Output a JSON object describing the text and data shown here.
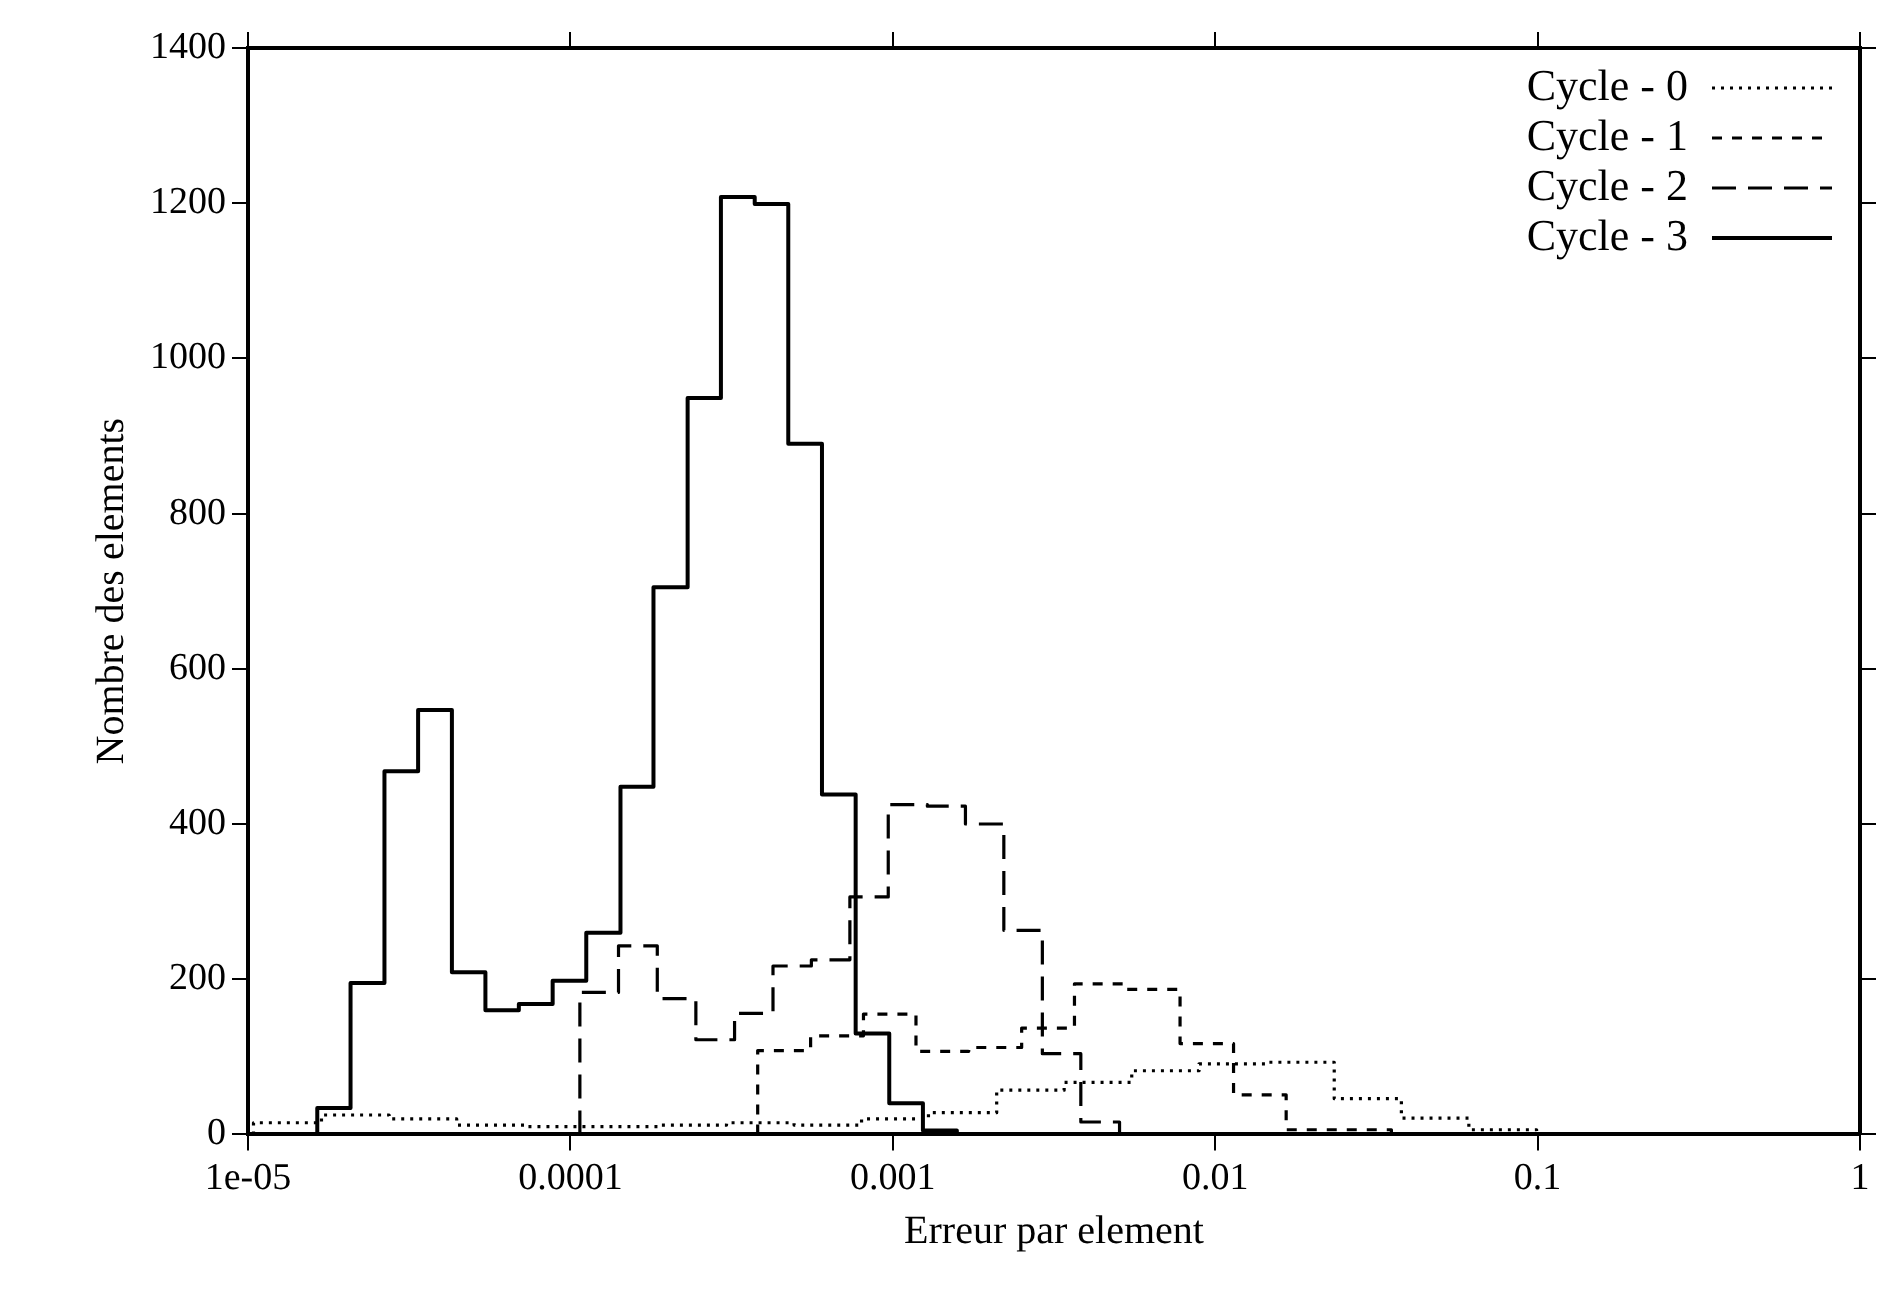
{
  "chart_data": {
    "type": "line",
    "xlabel": "Erreur par element",
    "ylabel": "Nombre des elements",
    "log": "x",
    "xlim": [
      1e-05,
      1
    ],
    "xticks": [
      {
        "value": 1e-05,
        "label": "1e-05"
      },
      0.0001,
      0.001,
      0.01,
      0.1,
      1
    ],
    "ylim": [
      0,
      1400
    ],
    "yticks": [
      0,
      200,
      400,
      600,
      800,
      1000,
      1200,
      1400
    ],
    "grid": false,
    "legend": "top right",
    "series": [
      {
        "name": "Cycle - 0",
        "type": "step",
        "color": "#000000",
        "line_style": "dotted",
        "x": [
          1.04e-05,
          1.04e-05,
          1.69e-05,
          2.74e-05,
          4.44e-05,
          7.18e-05,
          0.000116,
          0.000188,
          0.000305,
          0.000494,
          0.0008,
          0.00129,
          0.0021,
          0.0034,
          0.00551,
          0.00891,
          0.0144,
          0.0234,
          0.0378,
          0.0612,
          0.0993,
          0.161
        ],
        "values": [
          0,
          11,
          15,
          25,
          20,
          12,
          10,
          10,
          12,
          15,
          12,
          20,
          28,
          57,
          67,
          82,
          91,
          93,
          46,
          21,
          6,
          0
        ]
      },
      {
        "name": "Cycle - 1",
        "type": "step",
        "color": "#000000",
        "line_style": "dashed",
        "x": [
          0.000381,
          0.000381,
          0.000556,
          0.000811,
          0.00118,
          0.00172,
          0.00251,
          0.00366,
          0.00533,
          0.00778,
          0.0114,
          0.0166,
          0.0241,
          0.0352,
          0.0513
        ],
        "values": [
          0,
          64,
          108,
          127,
          155,
          107,
          112,
          137,
          194,
          187,
          117,
          51,
          6,
          6,
          0
        ]
      },
      {
        "name": "Cycle - 2",
        "type": "step",
        "color": "#000000",
        "line_style": "dashed",
        "x": [
          0.000107,
          0.000107,
          0.000141,
          0.000186,
          0.000245,
          0.000323,
          0.000425,
          0.000559,
          0.000736,
          0.000968,
          0.00128,
          0.00168,
          0.00221,
          0.00291,
          0.00383,
          0.00505,
          0.00664
        ],
        "values": [
          0,
          56,
          183,
          243,
          175,
          122,
          156,
          217,
          225,
          306,
          425,
          423,
          400,
          263,
          104,
          16,
          0
        ]
      },
      {
        "name": "Cycle - 3",
        "type": "step",
        "color": "#000000",
        "line_style": "solid",
        "x": [
          1.64e-05,
          1.64e-05,
          2.08e-05,
          2.65e-05,
          3.37e-05,
          4.29e-05,
          5.45e-05,
          6.92e-05,
          8.81e-05,
          0.000112,
          0.000143,
          0.000181,
          0.000231,
          0.000293,
          0.000373,
          0.000474,
          0.000603,
          0.000767,
          0.000975,
          0.00124,
          0.00158,
          0.00201
        ],
        "values": [
          0,
          5,
          34,
          195,
          468,
          547,
          209,
          160,
          168,
          198,
          260,
          448,
          705,
          949,
          1208,
          1199,
          890,
          438,
          130,
          40,
          5,
          0
        ]
      }
    ]
  }
}
